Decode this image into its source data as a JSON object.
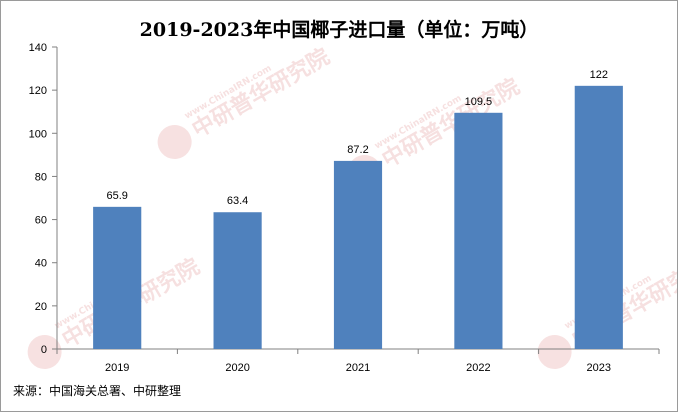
{
  "chart_data": {
    "type": "bar",
    "title": "2019-2023年中国椰子进口量（单位：万吨）",
    "categories": [
      "2019",
      "2020",
      "2021",
      "2022",
      "2023"
    ],
    "values": [
      65.9,
      63.4,
      87.2,
      109.5,
      122
    ],
    "data_labels": [
      "65.9",
      "63.4",
      "87.2",
      "109.5",
      "122"
    ],
    "ylim": [
      0,
      140
    ],
    "yticks": [
      0,
      20,
      40,
      60,
      80,
      100,
      120,
      140
    ],
    "xlabel": "",
    "ylabel": "",
    "grid": false,
    "bar_color": "#4f81bd"
  },
  "source": "来源：中国海关总署、中研整理",
  "watermark": {
    "brand": "中研普华研究院",
    "url": "www.ChinaIRN.com",
    "logo": "CIRN"
  }
}
